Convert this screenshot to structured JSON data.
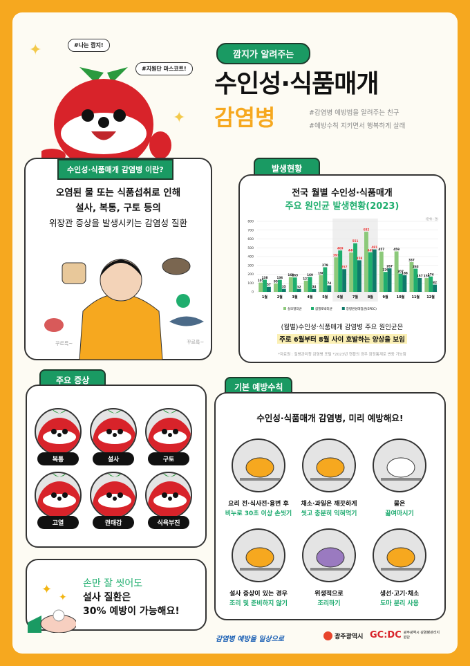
{
  "mascot": {
    "bubble1": "#나는 깜지!",
    "bubble2": "#지원단 마스코트!"
  },
  "header": {
    "pill": "깜지가 알려주는",
    "title": "수인성·식품매개",
    "subtitle": "감염병",
    "tag1": "#감염병 예방법을 알려주는 친구",
    "tag2": "#예방수칙 지키면서 행복하게 살래"
  },
  "about": {
    "tab": "수인성·식품매개 감염병 이란?",
    "line1": "오염된 물 또는 식품섭취로 인해",
    "line2": "설사, 복통, 구토 등의",
    "line3": "위장관 증상을 발생시키는 감염성 질환",
    "sound1": "꾸르륵~",
    "sound2": "꾸르륵~"
  },
  "status": {
    "tab": "발생현황",
    "title1": "전국 월별 수인성·식품매개",
    "title2": "주요 원인균 발생현황(2023)",
    "note1": "(월별)수인성·식품매개 감염병 주요 원인균은",
    "note2": "주로 6월부터 8월 사이 호발하는 양상을 보임",
    "source": "*자료원 : 질병관리청 감염병 포털 *2023년 현황의 경우 잠정통계로 변동 가능함"
  },
  "chart_data": {
    "type": "bar",
    "unit": "(단위 : 건)",
    "categories": [
      "1월",
      "2월",
      "3월",
      "4월",
      "5월",
      "6월",
      "7월",
      "8월",
      "9월",
      "10월",
      "11월",
      "12월"
    ],
    "ylim": [
      0,
      800
    ],
    "yticks": [
      0,
      100,
      200,
      300,
      400,
      500,
      600,
      700,
      800
    ],
    "grid": true,
    "legend": "bottom",
    "highlight": [
      "6월",
      "7월",
      "8월"
    ],
    "series": [
      {
        "name": "살모넬라균",
        "color": "#8cc97a",
        "values": [
          105,
          95,
          168,
          127,
          190,
          391,
          446,
          682,
          457,
          459,
          337,
          156
        ]
      },
      {
        "name": "캄필로박터균",
        "color": "#1fae6e",
        "values": [
          138,
          136,
          163,
          169,
          279,
          469,
          551,
          449,
          226,
          207,
          263,
          174
        ]
      },
      {
        "name": "장병원성대장균(EPEC)",
        "color": "#0f7a6a",
        "values": [
          57,
          35,
          32,
          34,
          74,
          257,
          358,
          481,
          267,
          188,
          157,
          82
        ]
      }
    ]
  },
  "symptoms": {
    "tab": "주요 증상",
    "items": [
      "복통",
      "설사",
      "구토",
      "고열",
      "권태감",
      "식욕부진"
    ]
  },
  "handwash": {
    "line1": "손만 잘 씻어도",
    "line2": "설사 질환은",
    "line3": "30% 예방이 가능해요!"
  },
  "prevention": {
    "tab": "기본 예방수칙",
    "title": "수인성·식품매개 감염병, 미리 예방해요!",
    "items": [
      {
        "a": "요리 전·식사전·용변 후",
        "b": "비누로 30초 이상 손씻기"
      },
      {
        "a": "채소·과일은 깨끗하게",
        "b": "씻고 충분히 익혀먹기"
      },
      {
        "a": "물은",
        "b": "끓여마시기"
      },
      {
        "a": "설사 증상이 있는 경우",
        "b": "조리 및 준비하지 않기"
      },
      {
        "a": "위생적으로",
        "b": "조리하기"
      },
      {
        "a": "생선·고기·채소",
        "b": "도마 분리 사용"
      }
    ]
  },
  "footer": {
    "slogan": "감염병 예방을 일상으로",
    "city": "광주광역시",
    "org": "GC:DC",
    "org_sub": "광주광역시 감염병관리지원단"
  },
  "colors": {
    "green": "#1a9a63",
    "orange": "#f6a81f",
    "red": "#d8232a"
  }
}
